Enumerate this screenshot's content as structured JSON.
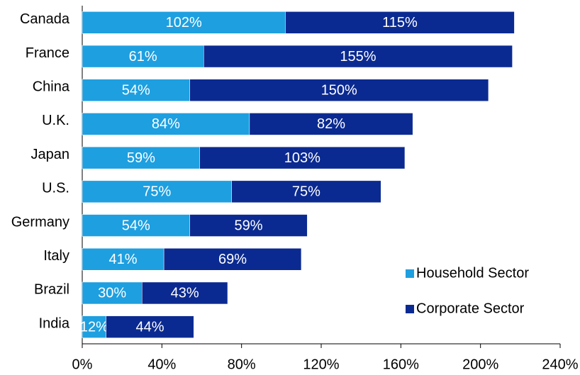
{
  "chart_data": {
    "type": "stacked_barh",
    "categories": [
      "Canada",
      "France",
      "China",
      "U.K.",
      "Japan",
      "U.S.",
      "Germany",
      "Italy",
      "Brazil",
      "India"
    ],
    "series": [
      {
        "name": "Household Sector",
        "color": "#1e9fe0",
        "values": [
          102,
          61,
          54,
          84,
          59,
          75,
          54,
          41,
          30,
          12
        ],
        "value_labels": [
          "102%",
          "61%",
          "54%",
          "84%",
          "59%",
          "75%",
          "54%",
          "41%",
          "30%",
          "12%"
        ]
      },
      {
        "name": "Corporate Sector",
        "color": "#0b2a91",
        "values": [
          115,
          155,
          150,
          82,
          103,
          75,
          59,
          69,
          43,
          44
        ],
        "value_labels": [
          "115%",
          "155%",
          "150%",
          "82%",
          "103%",
          "75%",
          "59%",
          "69%",
          "43%",
          "44%"
        ]
      }
    ],
    "xlim": [
      0,
      240
    ],
    "xticks": [
      {
        "value": 0,
        "label": "0%"
      },
      {
        "value": 40,
        "label": "40%"
      },
      {
        "value": 80,
        "label": "80%"
      },
      {
        "value": 120,
        "label": "120%"
      },
      {
        "value": 160,
        "label": "160%"
      },
      {
        "value": 200,
        "label": "200%"
      },
      {
        "value": 240,
        "label": "240%"
      }
    ],
    "legend": "lower right"
  }
}
